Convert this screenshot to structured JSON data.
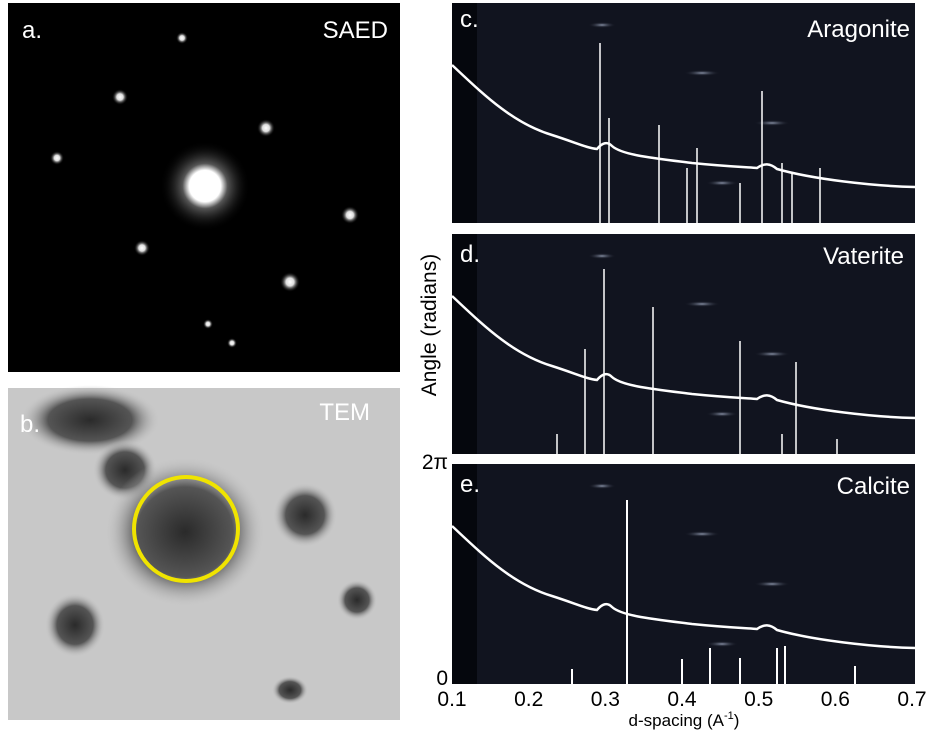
{
  "panels": [
    {
      "letter": "a.",
      "title": "SAED"
    },
    {
      "letter": "b.",
      "title": "TEM"
    },
    {
      "letter": "c.",
      "title": "Aragonite"
    },
    {
      "letter": "d.",
      "title": "Vaterite"
    },
    {
      "letter": "e.",
      "title": "Calcite"
    }
  ],
  "x_axis": {
    "label": "d-spacing (A",
    "label_superscript": "-1",
    "label_suffix": ")",
    "lim": [
      0.1,
      0.7
    ],
    "ticks": [
      0.1,
      0.2,
      0.3,
      0.4,
      0.5,
      0.6,
      0.7
    ]
  },
  "y_axis": {
    "label": "Angle (radians)",
    "lim": [
      0,
      6.2832
    ],
    "ticks": [
      0,
      {
        "value": 6.2832,
        "label": "2π"
      }
    ]
  }
}
